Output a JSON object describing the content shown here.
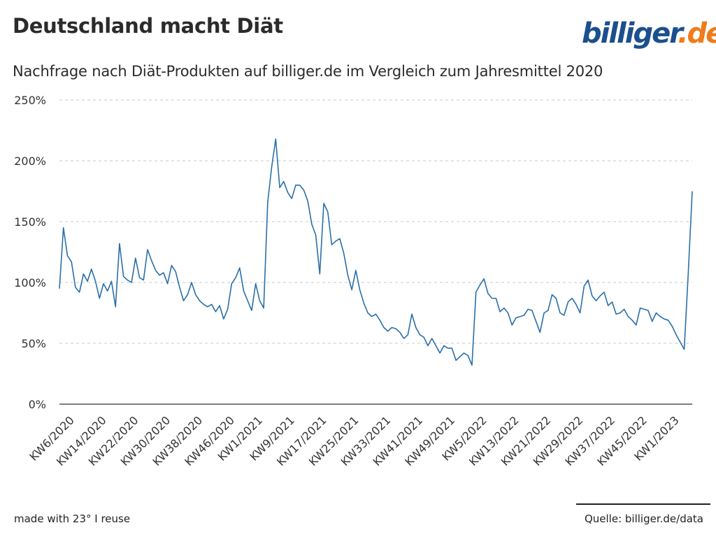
{
  "header": {
    "title": "Deutschland macht Diät",
    "subtitle": "Nachfrage nach Diät-Produkten auf billiger.de im Vergleich zum Jahresmittel 2020"
  },
  "logo": {
    "part1": "billiger",
    "part2": ".de",
    "color1": "#1b4f8f",
    "color2": "#f07b1a"
  },
  "footer": {
    "made_with": "made with 23° I reuse",
    "source": "Quelle: billiger.de/data"
  },
  "chart_data": {
    "type": "line",
    "line_color": "#2a6fa8",
    "grid": true,
    "ylim": [
      0,
      250
    ],
    "yticks": [
      0,
      50,
      100,
      150,
      200,
      250
    ],
    "ytick_labels": [
      "0%",
      "50%",
      "100%",
      "150%",
      "200%",
      "250%"
    ],
    "xtick_labels": [
      "KW6/2020",
      "KW14/2020",
      "KW22/2020",
      "KW30/2020",
      "KW38/2020",
      "KW46/2020",
      "KW1/2021",
      "KW9/2021",
      "KW17/2021",
      "KW25/2021",
      "KW33/2021",
      "KW41/2021",
      "KW49/2021",
      "KW5/2022",
      "KW13/2022",
      "KW21/2022",
      "KW29/2022",
      "KW37/2022",
      "KW45/2022",
      "KW1/2023"
    ],
    "xtick_index": [
      0,
      8,
      16,
      24,
      32,
      40,
      47,
      55,
      63,
      71,
      79,
      87,
      95,
      103,
      111,
      119,
      127,
      135,
      143,
      151
    ],
    "series": [
      {
        "values": [
          95,
          145,
          122,
          117,
          96,
          92,
          107,
          101,
          111,
          101,
          87,
          99,
          93,
          101,
          80,
          132,
          105,
          102,
          100,
          120,
          104,
          102,
          127,
          118,
          110,
          106,
          108,
          99,
          114,
          109,
          96,
          85,
          90,
          100,
          90,
          85,
          82,
          80,
          82,
          76,
          81,
          70,
          78,
          99,
          104,
          112,
          93,
          85,
          77,
          99,
          85,
          79,
          166,
          195,
          218,
          178,
          183,
          174,
          169,
          180,
          180,
          176,
          167,
          148,
          139,
          107,
          165,
          158,
          131,
          134,
          136,
          124,
          106,
          94,
          110,
          94,
          83,
          75,
          72,
          74,
          69,
          63,
          60,
          63,
          62,
          59,
          54,
          57,
          74,
          63,
          57,
          55,
          48,
          54,
          48,
          42,
          48,
          46,
          46,
          36,
          39,
          42,
          40,
          32,
          92,
          98,
          103,
          91,
          87,
          87,
          76,
          79,
          75,
          65,
          71,
          72,
          73,
          78,
          77,
          68,
          59,
          75,
          77,
          90,
          87,
          75,
          73,
          84,
          87,
          82,
          75,
          97,
          102,
          89,
          85,
          89,
          92,
          81,
          84,
          74,
          75,
          78,
          72,
          69,
          65,
          79,
          78,
          77,
          68,
          75,
          72,
          70,
          69,
          64,
          57,
          51,
          45,
          107,
          175
        ]
      }
    ]
  }
}
